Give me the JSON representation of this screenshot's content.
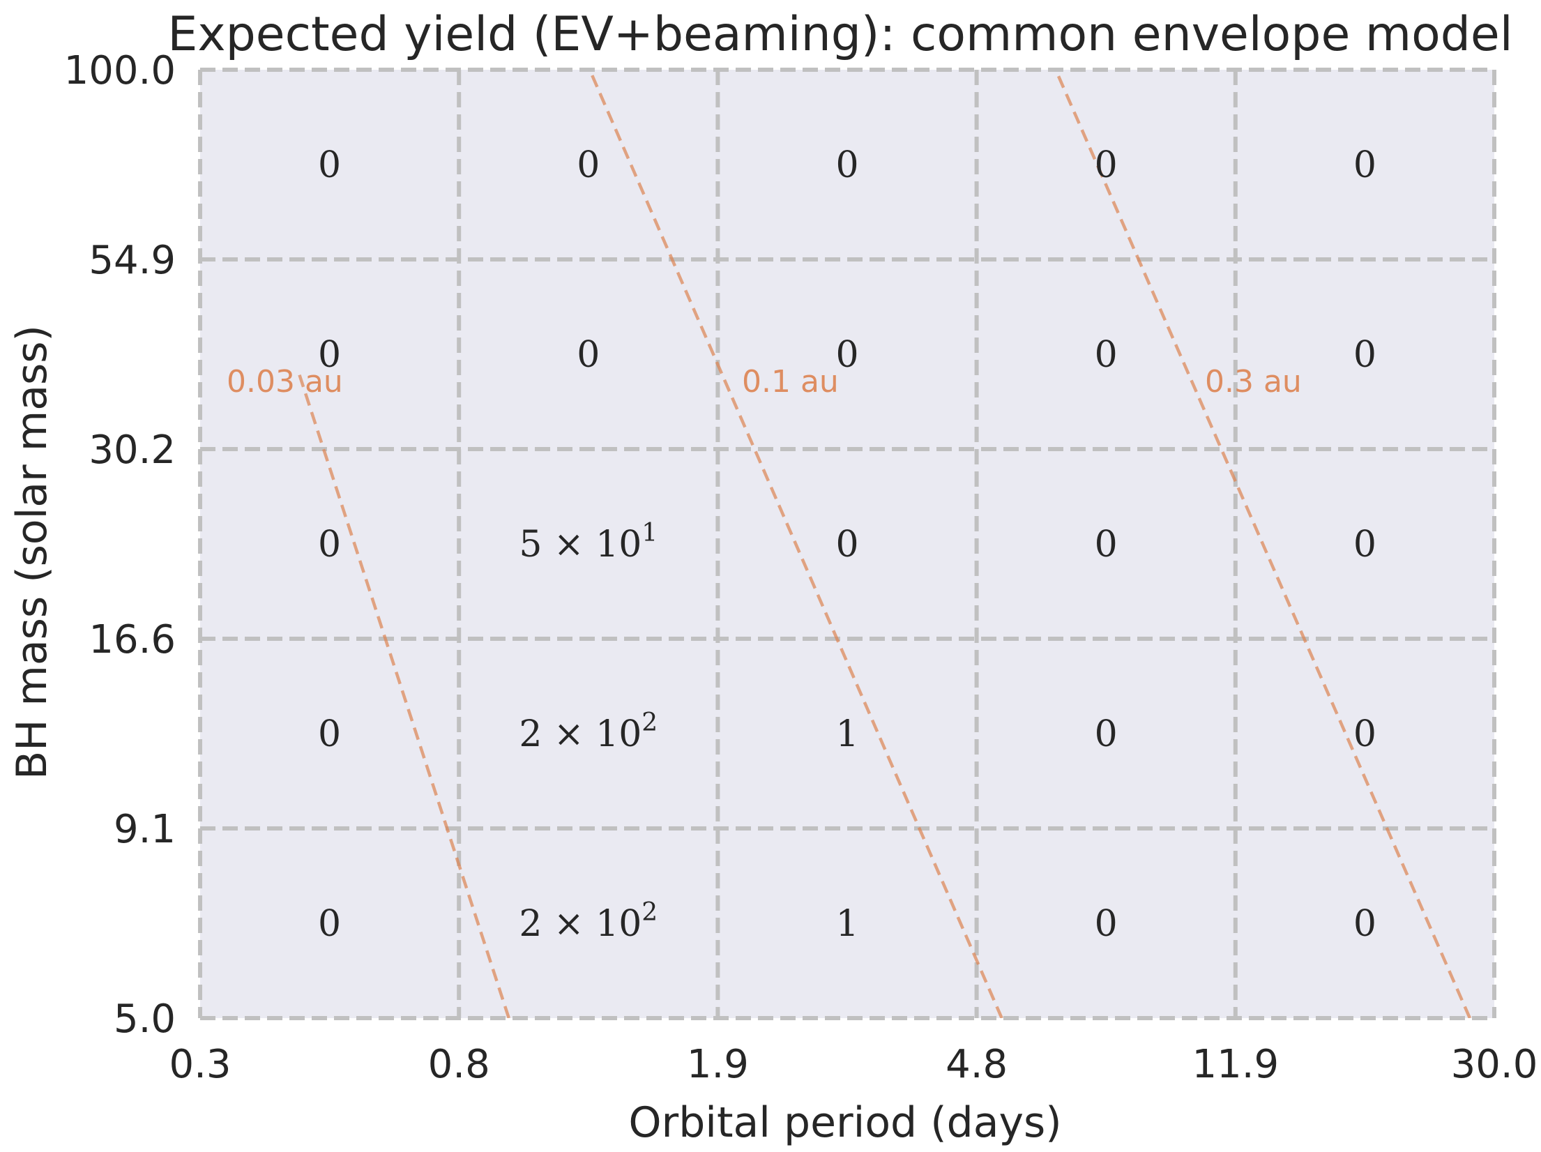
{
  "chart_data": {
    "type": "heatmap",
    "title": "Expected yield (EV+beaming): common envelope model",
    "xlabel": "Orbital period (days)",
    "ylabel": "BH mass (solar mass)",
    "x_scale": "log",
    "y_scale": "log",
    "x_ticks": [
      "0.3",
      "0.8",
      "1.9",
      "4.8",
      "11.9",
      "30.0"
    ],
    "y_ticks": [
      "5.0",
      "9.1",
      "16.6",
      "30.2",
      "54.9",
      "100.0"
    ],
    "xlim": [
      0.3,
      30.0
    ],
    "ylim": [
      5.0,
      100.0
    ],
    "cells": [
      [
        {
          "mant": "",
          "exp": "",
          "plain": "0"
        },
        {
          "mant": "2",
          "exp": "2",
          "plain": ""
        },
        {
          "mant": "",
          "exp": "",
          "plain": "1"
        },
        {
          "mant": "",
          "exp": "",
          "plain": "0"
        },
        {
          "mant": "",
          "exp": "",
          "plain": "0"
        }
      ],
      [
        {
          "mant": "",
          "exp": "",
          "plain": "0"
        },
        {
          "mant": "2",
          "exp": "2",
          "plain": ""
        },
        {
          "mant": "",
          "exp": "",
          "plain": "1"
        },
        {
          "mant": "",
          "exp": "",
          "plain": "0"
        },
        {
          "mant": "",
          "exp": "",
          "plain": "0"
        }
      ],
      [
        {
          "mant": "",
          "exp": "",
          "plain": "0"
        },
        {
          "mant": "5",
          "exp": "1",
          "plain": ""
        },
        {
          "mant": "",
          "exp": "",
          "plain": "0"
        },
        {
          "mant": "",
          "exp": "",
          "plain": "0"
        },
        {
          "mant": "",
          "exp": "",
          "plain": "0"
        }
      ],
      [
        {
          "mant": "",
          "exp": "",
          "plain": "0"
        },
        {
          "mant": "",
          "exp": "",
          "plain": "0"
        },
        {
          "mant": "",
          "exp": "",
          "plain": "0"
        },
        {
          "mant": "",
          "exp": "",
          "plain": "0"
        },
        {
          "mant": "",
          "exp": "",
          "plain": "0"
        }
      ],
      [
        {
          "mant": "",
          "exp": "",
          "plain": "0"
        },
        {
          "mant": "",
          "exp": "",
          "plain": "0"
        },
        {
          "mant": "",
          "exp": "",
          "plain": "0"
        },
        {
          "mant": "",
          "exp": "",
          "plain": "0"
        },
        {
          "mant": "",
          "exp": "",
          "plain": "0"
        }
      ]
    ],
    "separation_lines": [
      {
        "label": "0.03 au",
        "period_at_ymin": 0.9,
        "period_at_ymax": 0.3,
        "mass_at_top": 38.5
      },
      {
        "label": "0.1 au",
        "period_at_ymin": 5.2,
        "period_at_ymax": 1.2
      },
      {
        "label": "0.3 au",
        "period_at_ymin": 27.5,
        "period_at_ymax": 6.3
      }
    ],
    "line_color": "#dd8452",
    "background_color": "#eaeaf2",
    "grid_color": "#c0c0c0",
    "text_color": "#262626"
  }
}
